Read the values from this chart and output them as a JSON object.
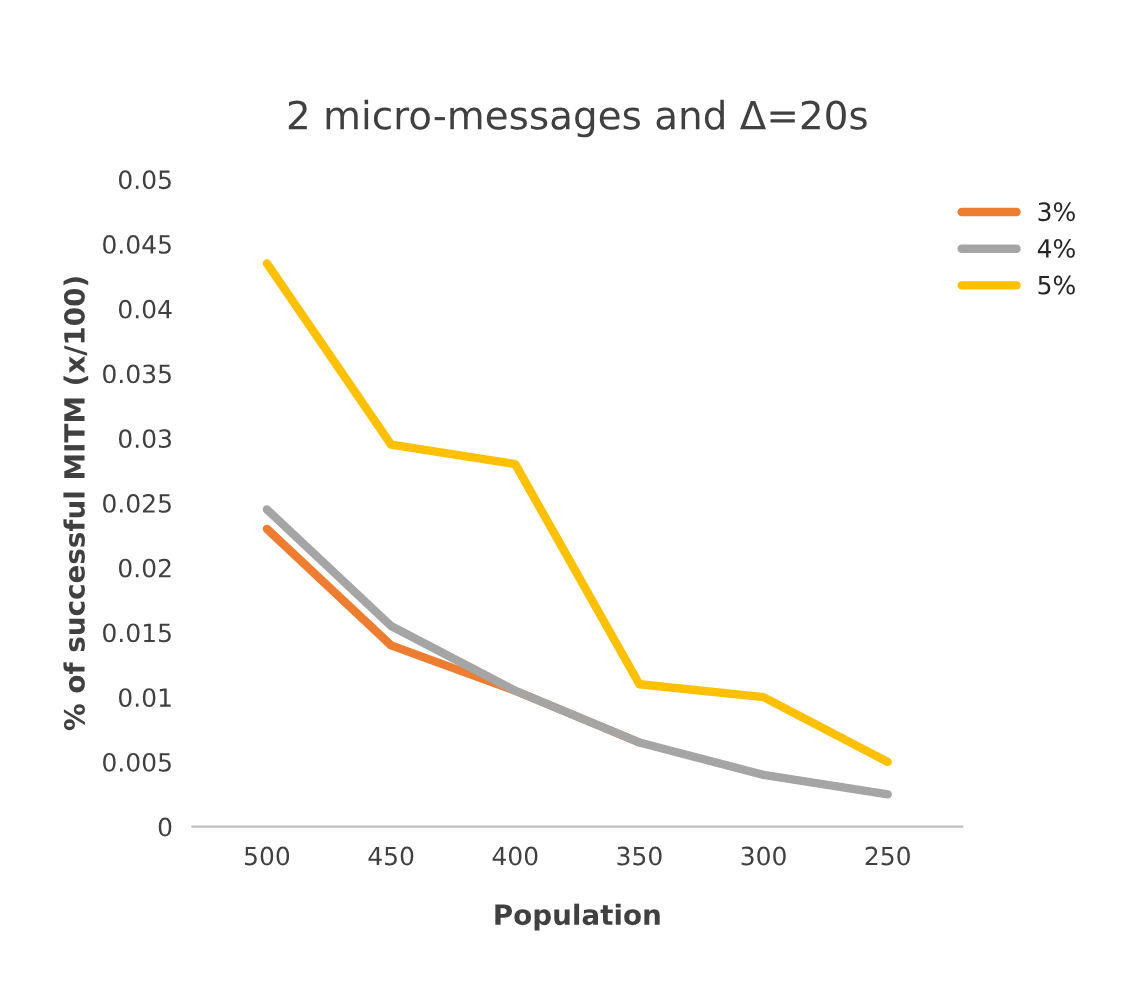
{
  "chart_data": {
    "type": "line",
    "title": "2 micro-messages and Δ=20s",
    "xlabel": "Population",
    "ylabel": "% of successful MITM (x/100)",
    "categories": [
      "500",
      "450",
      "400",
      "350",
      "300",
      "250"
    ],
    "series": [
      {
        "name": "3%",
        "color": "#ed7d31",
        "values": [
          0.023,
          0.014,
          0.0105,
          0.0065,
          null,
          null
        ]
      },
      {
        "name": "4%",
        "color": "#a5a5a5",
        "values": [
          0.0245,
          0.0155,
          0.0105,
          0.0065,
          0.004,
          0.0025
        ]
      },
      {
        "name": "5%",
        "color": "#ffc000",
        "values": [
          0.0435,
          0.0295,
          0.028,
          0.011,
          0.01,
          0.005
        ]
      }
    ],
    "ylim": [
      0,
      0.05
    ],
    "yticks": [
      0,
      0.005,
      0.01,
      0.015,
      0.02,
      0.025,
      0.03,
      0.035,
      0.04,
      0.045,
      0.05
    ],
    "grid": false,
    "legend": "top right",
    "marker": "none",
    "line_style": "solid"
  }
}
